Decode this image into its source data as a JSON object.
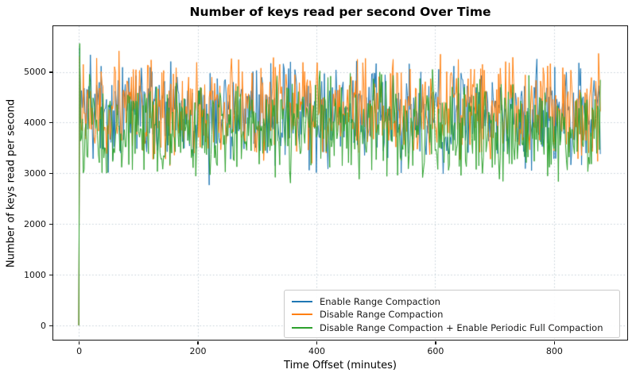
{
  "chart_data": {
    "type": "line",
    "title": "Number of keys read per second Over Time",
    "xlabel": "Time Offset (minutes)",
    "ylabel": "Number of keys read per second",
    "x_ticks": [
      0,
      200,
      400,
      600,
      800
    ],
    "y_ticks": [
      0,
      1000,
      2000,
      3000,
      4000,
      5000
    ],
    "xlim": [
      -43,
      922
    ],
    "ylim": [
      -266,
      5900
    ],
    "x_data_range": [
      0,
      878
    ],
    "grid": true,
    "grid_color": "#c3cfd7",
    "grid_style": "dotted",
    "legend_position": "lower-right-inside",
    "axis_color": "#141414",
    "series": [
      {
        "name": "Enable Range Compaction",
        "color": "#1f77b4",
        "start_value": 0,
        "initial_spike": 5480,
        "est_mean": 4160,
        "est_min": 2600,
        "est_max": 5620,
        "gen": {
          "seed": 7,
          "points": 585,
          "spread": 880,
          "amp_min": 0.5,
          "amp_max": 1.42,
          "dip_prob": 0.012,
          "dip_depth": 750,
          "clamp_min": 2600,
          "clamp_max": 5620,
          "early_boost": 320
        }
      },
      {
        "name": "Disable Range Compaction",
        "color": "#ff7f0e",
        "start_value": 0,
        "initial_spike": 5300,
        "est_mean": 4260,
        "est_min": 3000,
        "est_max": 5650,
        "gen": {
          "seed": 13,
          "points": 585,
          "spread": 840,
          "amp_min": 0.5,
          "amp_max": 1.43,
          "dip_prob": 0.006,
          "dip_depth": 500,
          "clamp_min": 2980,
          "clamp_max": 5650,
          "early_boost": 260
        }
      },
      {
        "name": "Disable Range Compaction + Enable Periodic Full Compaction",
        "color": "#2ca02c",
        "start_value": 0,
        "initial_spike": 5560,
        "est_mean": 3920,
        "est_min": 2750,
        "est_max": 5480,
        "gen": {
          "seed": 23,
          "points": 585,
          "spread": 820,
          "amp_min": 0.5,
          "amp_max": 1.45,
          "dip_prob": 0.01,
          "dip_depth": 600,
          "clamp_min": 2740,
          "clamp_max": 5480,
          "early_boost": 150
        }
      }
    ]
  }
}
